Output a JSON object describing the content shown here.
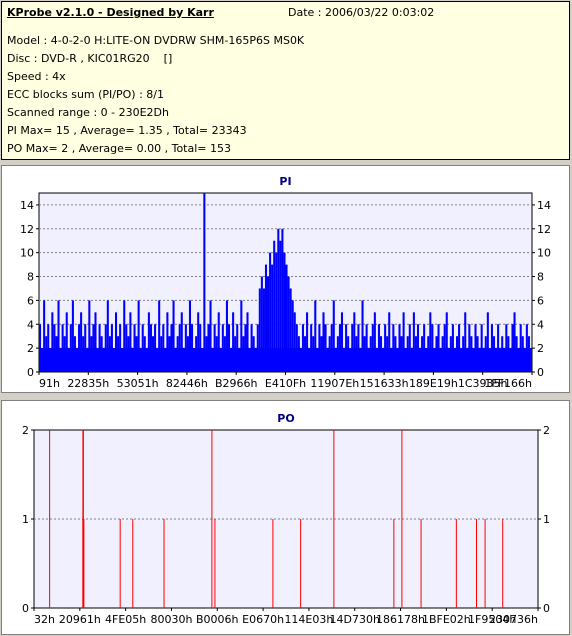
{
  "header": {
    "title": "KProbe v2.1.0 - Designed by Karr",
    "date": "Date : 2006/03/22 0:03:02",
    "lines": [
      "Model : 4-0-2-0 H:LITE-ON DVDRW SHM-165P6S MS0K",
      "Disc : DVD-R , KIC01RG20    []",
      "Speed : 4x",
      "ECC blocks sum (PI/PO) : 8/1",
      "Scanned range : 0 - 230E2Dh",
      "PI Max= 15 , Average= 1.35 , Total= 23343",
      "PO Max= 2 , Average= 0.00 , Total= 153"
    ]
  },
  "colors": {
    "panel": "#d4d0c8",
    "info_bg": "#ffffe1",
    "plot_bg": "#f0f0ff",
    "pi": "#0000ff",
    "po": "#ff0000",
    "title": "#000080"
  },
  "chart_data": [
    {
      "type": "bar",
      "title": "PI",
      "xlabel": "",
      "ylabel": "",
      "ylim": [
        0,
        15
      ],
      "y_ticks": [
        0,
        2,
        4,
        6,
        8,
        10,
        12,
        14
      ],
      "x_tick_labels": [
        "91h",
        "22835h",
        "53051h",
        "82446h",
        "B2966h",
        "E410Fh",
        "11907Eh",
        "151633h",
        "189E19h",
        "1C3935h",
        "1FF166h"
      ],
      "x_range": [
        "0h",
        "230E2Dh"
      ],
      "baseline_values": [
        4,
        2,
        6,
        3,
        4,
        2,
        5,
        4,
        3,
        6,
        2,
        4,
        3,
        5,
        2,
        4,
        6,
        3,
        2,
        4,
        5,
        3,
        4,
        2,
        6,
        3,
        4,
        5,
        2,
        4,
        3,
        2,
        4,
        6,
        3,
        4,
        2,
        5,
        3,
        4,
        2,
        6,
        4,
        3,
        5,
        2,
        4,
        3,
        6,
        2,
        4,
        3,
        2,
        5,
        4,
        3,
        4,
        2,
        6,
        3,
        4,
        2,
        5,
        3,
        4,
        6,
        2,
        3,
        4,
        5,
        2,
        4,
        3,
        6,
        4,
        2,
        3,
        5,
        4,
        2,
        15,
        3,
        4,
        6,
        2,
        4,
        3,
        5,
        2,
        4,
        3,
        6,
        4,
        2,
        5,
        3,
        4,
        2,
        6,
        3,
        4,
        5,
        2,
        4,
        3,
        2,
        4,
        7,
        8,
        7,
        9,
        8,
        10,
        9,
        11,
        10,
        12,
        11,
        12,
        10,
        9,
        8,
        7,
        6,
        5,
        4,
        3,
        2,
        4,
        3,
        5,
        2,
        4,
        3,
        6,
        2,
        4,
        3,
        5,
        4,
        2,
        3,
        4,
        6,
        2,
        3,
        4,
        5,
        2,
        4,
        3,
        2,
        4,
        5,
        3,
        4,
        2,
        6,
        3,
        4,
        2,
        3,
        4,
        5,
        2,
        4,
        3,
        2,
        4,
        3,
        5,
        2,
        4,
        3,
        2,
        4,
        3,
        5,
        2,
        3,
        4,
        2,
        5,
        3,
        4,
        2,
        3,
        4,
        2,
        3,
        5,
        4,
        2,
        3,
        4,
        2,
        3,
        4,
        5,
        2,
        3,
        4,
        2,
        3,
        4,
        2,
        3,
        5,
        2,
        4,
        3,
        2,
        4,
        3,
        2,
        4,
        2,
        3,
        5,
        2,
        4,
        3,
        2,
        4,
        1,
        3,
        2,
        4,
        3,
        2,
        4,
        5,
        3,
        2,
        4,
        3,
        2,
        4,
        3,
        2
      ],
      "note_on_values": "PI count per sample along scanned range (estimated from plot)"
    },
    {
      "type": "bar",
      "title": "PO",
      "xlabel": "",
      "ylabel": "",
      "ylim": [
        0,
        2
      ],
      "y_ticks": [
        0,
        1,
        2
      ],
      "x_tick_labels": [
        "32h",
        "20961h",
        "4FE05h",
        "80030h",
        "B0006h",
        "E0670h",
        "114E03h",
        "14D730h",
        "186178h",
        "1BFE02h",
        "1F9504h",
        "230736h"
      ],
      "x_range": [
        "0h",
        "230E2Dh"
      ],
      "spikes": [
        {
          "pos": 0.031,
          "value": 2
        },
        {
          "pos": 0.097,
          "value": 2
        },
        {
          "pos": 0.098,
          "value": 2
        },
        {
          "pos": 0.097,
          "value": 1
        },
        {
          "pos": 0.099,
          "value": 1
        },
        {
          "pos": 0.171,
          "value": 1
        },
        {
          "pos": 0.196,
          "value": 1
        },
        {
          "pos": 0.258,
          "value": 1
        },
        {
          "pos": 0.353,
          "value": 2
        },
        {
          "pos": 0.359,
          "value": 1
        },
        {
          "pos": 0.474,
          "value": 1
        },
        {
          "pos": 0.529,
          "value": 1
        },
        {
          "pos": 0.595,
          "value": 2
        },
        {
          "pos": 0.714,
          "value": 1
        },
        {
          "pos": 0.73,
          "value": 2
        },
        {
          "pos": 0.768,
          "value": 1
        },
        {
          "pos": 0.838,
          "value": 1
        },
        {
          "pos": 0.878,
          "value": 1
        },
        {
          "pos": 0.895,
          "value": 1
        },
        {
          "pos": 0.93,
          "value": 1
        }
      ]
    }
  ]
}
